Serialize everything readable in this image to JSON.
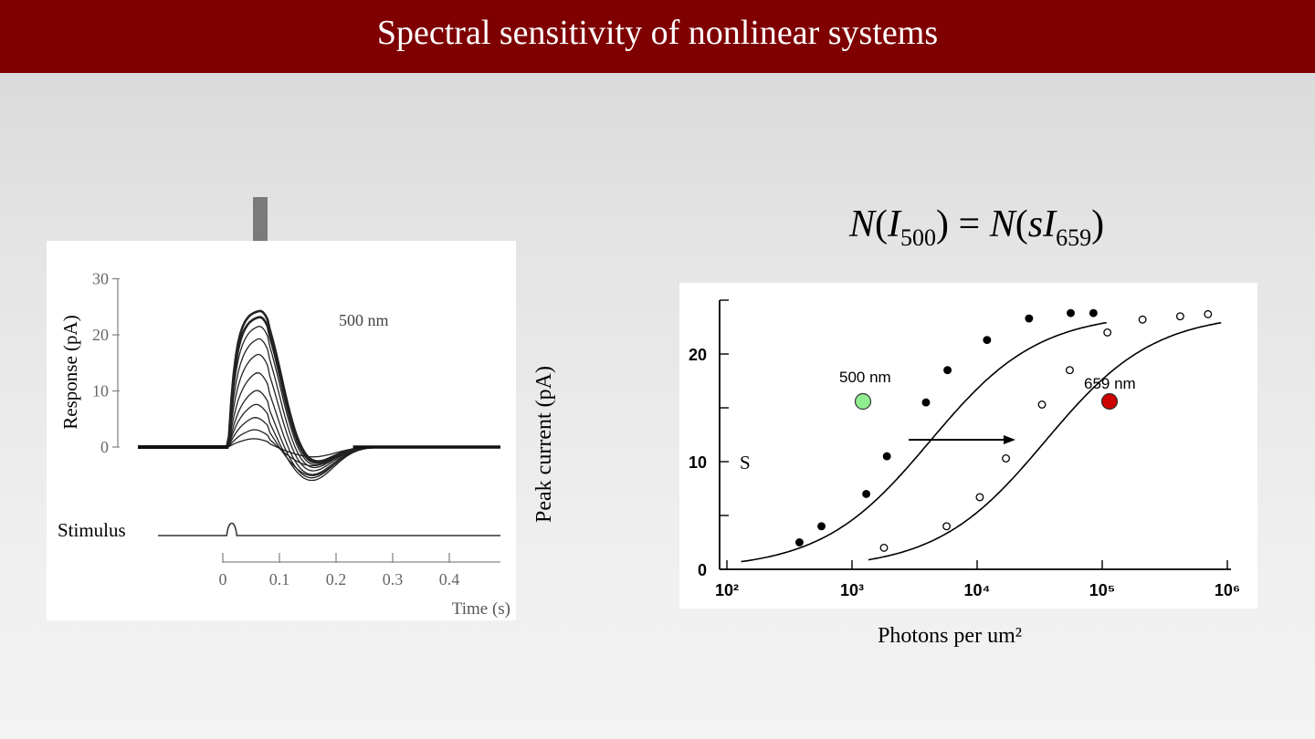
{
  "slide": {
    "title": "Spectral sensitivity of nonlinear systems"
  },
  "equation": {
    "lhs_func": "N",
    "lhs_var": "I",
    "lhs_sub": "500",
    "equals": "=",
    "rhs_func": "N",
    "rhs_scale": "s",
    "rhs_var": "I",
    "rhs_sub": "659"
  },
  "icons": {
    "stimulus_arrow": "down-arrow-icon",
    "shift_arrow": "right-arrow-icon"
  },
  "colors": {
    "title_bar": "#7f0000",
    "dot_500": "#90ee90",
    "dot_659": "#cc0000"
  },
  "chart_data": [
    {
      "type": "line",
      "title": "",
      "annotation": "500 nm",
      "xlabel": "Time (s)",
      "ylabel": "Response (pA)",
      "xlim": [
        -0.05,
        0.5
      ],
      "ylim": [
        -10,
        30
      ],
      "x_ticks": [
        "0",
        "0.1",
        "0.2",
        "0.3",
        "0.4"
      ],
      "y_ticks": [
        "0",
        "10",
        "20",
        "30"
      ],
      "stimulus_label": "Stimulus",
      "stimulus_flash_time": 0.015,
      "series_peak_amplitudes": [
        2,
        4,
        6.5,
        9,
        11.5,
        14.5,
        17.5,
        20,
        22,
        23.5,
        24.5
      ],
      "grid": false
    },
    {
      "type": "scatter",
      "title": "",
      "xlabel": "Photons per um²",
      "ylabel": "Peak current (pA)",
      "x_scale": "log",
      "xlim": [
        100,
        1000000
      ],
      "ylim": [
        0,
        25
      ],
      "x_ticks": [
        100,
        1000,
        10000,
        100000,
        1000000
      ],
      "x_tick_labels": [
        "10²",
        "10³",
        "10⁴",
        "10⁵",
        "10⁶"
      ],
      "y_ticks": [
        "0",
        "10",
        "20"
      ],
      "shift_label": "S",
      "series": [
        {
          "name": "500 nm",
          "marker": "filled",
          "x": [
            380,
            570,
            1300,
            1900,
            3900,
            5800,
            12000,
            26000,
            56000,
            85000
          ],
          "y": [
            2.5,
            4.0,
            7.0,
            10.5,
            15.5,
            18.5,
            21.3,
            23.3,
            23.8,
            23.8
          ]
        },
        {
          "name": "659 nm",
          "marker": "open",
          "x": [
            1800,
            5700,
            10500,
            17000,
            33000,
            55000,
            110000,
            210000,
            420000,
            700000
          ],
          "y": [
            2.0,
            4.0,
            6.7,
            10.3,
            15.3,
            18.5,
            22.0,
            23.2,
            23.5,
            23.7
          ]
        }
      ],
      "fit_curves": [
        {
          "name": "500 nm",
          "half_saturation": 4200,
          "max": 23.8
        },
        {
          "name": "659 nm",
          "half_saturation": 35000,
          "max": 23.8
        }
      ],
      "grid": false
    }
  ]
}
